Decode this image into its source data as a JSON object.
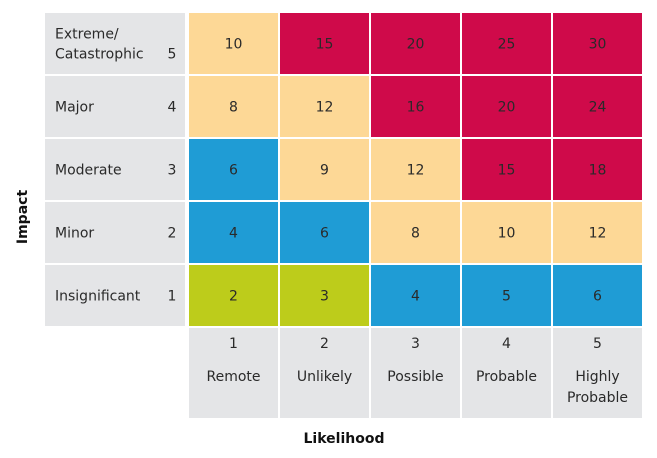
{
  "chart_data": {
    "type": "heatmap",
    "title": "",
    "xlabel": "Likelihood",
    "ylabel": "Impact",
    "likelihood": [
      {
        "score": "1",
        "label": [
          "Remote"
        ]
      },
      {
        "score": "2",
        "label": [
          "Unlikely"
        ]
      },
      {
        "score": "3",
        "label": [
          "Possible"
        ]
      },
      {
        "score": "4",
        "label": [
          "Probable"
        ]
      },
      {
        "score": "5",
        "label": [
          "Highly",
          "Probable"
        ]
      }
    ],
    "impact": [
      {
        "score": "5",
        "label": [
          "Extreme/",
          "Catastrophic"
        ]
      },
      {
        "score": "4",
        "label": [
          "Major"
        ]
      },
      {
        "score": "3",
        "label": [
          "Moderate"
        ]
      },
      {
        "score": "2",
        "label": [
          "Minor"
        ]
      },
      {
        "score": "1",
        "label": [
          "Insignificant"
        ]
      }
    ],
    "values": [
      [
        10,
        15,
        20,
        25,
        30
      ],
      [
        8,
        12,
        16,
        20,
        24
      ],
      [
        6,
        9,
        12,
        15,
        18
      ],
      [
        4,
        6,
        8,
        10,
        12
      ],
      [
        2,
        3,
        4,
        5,
        6
      ]
    ],
    "cell_colors": [
      [
        "peach",
        "red",
        "red",
        "red",
        "red"
      ],
      [
        "peach",
        "peach",
        "red",
        "red",
        "red"
      ],
      [
        "blue",
        "peach",
        "peach",
        "red",
        "red"
      ],
      [
        "blue",
        "blue",
        "peach",
        "peach",
        "peach"
      ],
      [
        "green",
        "green",
        "blue",
        "blue",
        "blue"
      ]
    ],
    "palette": {
      "red": "#cf0a4a",
      "peach": "#fdd896",
      "blue": "#1f9cd5",
      "green": "#bdcc1b",
      "label_bg": "#e4e5e7"
    }
  }
}
